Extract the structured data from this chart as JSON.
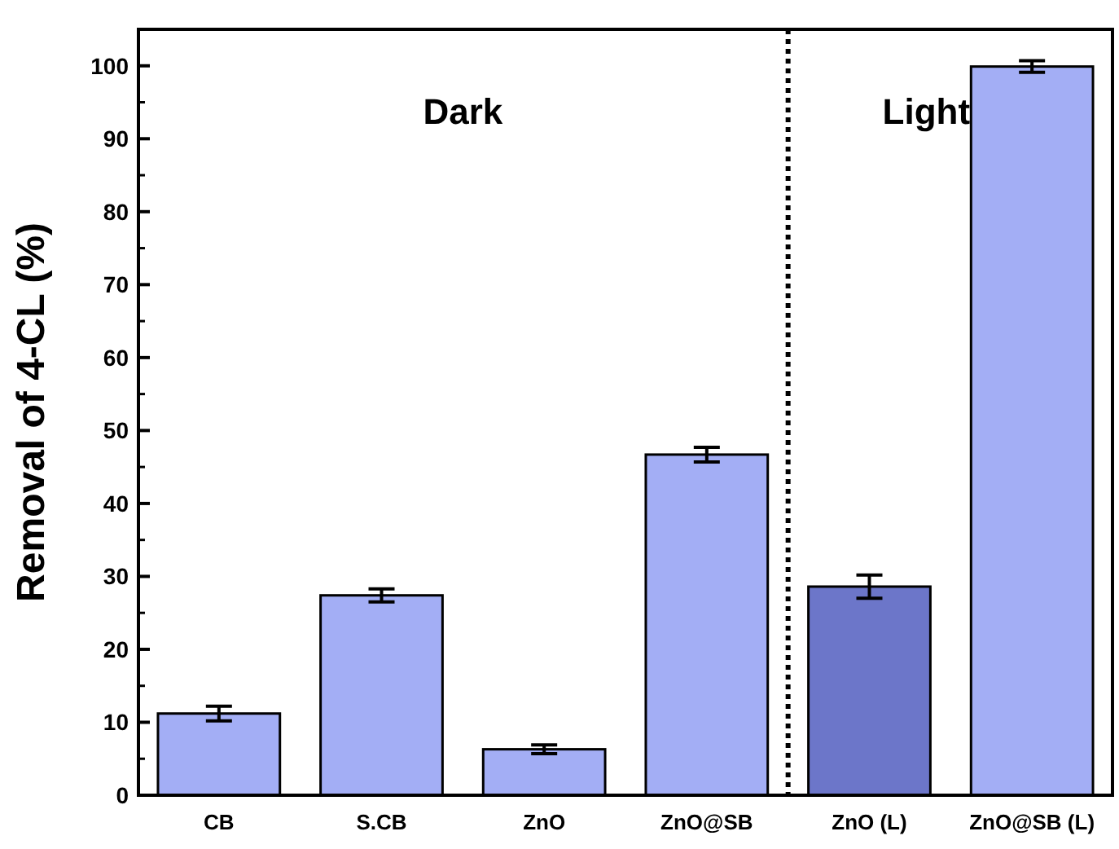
{
  "chart_data": {
    "type": "bar",
    "ylabel": "Removal of 4-CL (%)",
    "categories": [
      "CB",
      "S.CB",
      "ZnO",
      "ZnO@SB",
      "ZnO (L)",
      "ZnO@SB (L)"
    ],
    "values": [
      11.2,
      27.4,
      6.3,
      46.7,
      28.6,
      99.9
    ],
    "errors": [
      1.0,
      0.9,
      0.6,
      1.0,
      1.6,
      0.8
    ],
    "colors": [
      "#a3aef5",
      "#a3aef5",
      "#a3aef5",
      "#a3aef5",
      "#6c76c9",
      "#a3aef5"
    ],
    "ylim": [
      0,
      105
    ],
    "yticks": [
      0,
      10,
      20,
      30,
      40,
      50,
      60,
      70,
      80,
      90,
      100
    ],
    "grid": false,
    "annotations": [
      "Dark",
      "Light"
    ]
  }
}
